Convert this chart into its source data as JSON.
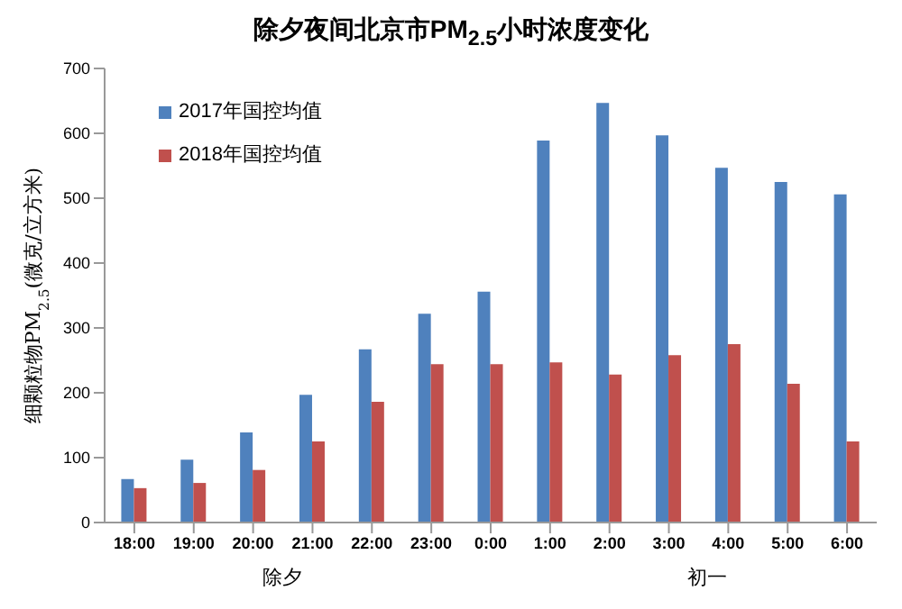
{
  "chart_data": {
    "type": "bar",
    "title": "除夕夜间北京市PM$_{2.5}$小时浓度变化",
    "ylabel": "细颗粒物PM$_{2.5}$(微克/立方米)",
    "categories": [
      "18:00",
      "19:00",
      "20:00",
      "21:00",
      "22:00",
      "23:00",
      "0:00",
      "1:00",
      "2:00",
      "3:00",
      "4:00",
      "5:00",
      "6:00"
    ],
    "series": [
      {
        "name": "2017年国控均值",
        "color": "#4f81bd",
        "values": [
          67,
          97,
          139,
          197,
          267,
          322,
          356,
          589,
          647,
          597,
          547,
          525,
          506
        ]
      },
      {
        "name": "2018年国控均值",
        "color": "#c0504d",
        "values": [
          53,
          61,
          81,
          125,
          186,
          244,
          244,
          247,
          228,
          258,
          275,
          214,
          125
        ]
      }
    ],
    "ylim": [
      0,
      700
    ],
    "yticks": [
      0,
      100,
      200,
      300,
      400,
      500,
      600,
      700
    ],
    "grid": false,
    "legend": "top left",
    "annotations": [
      "除夕",
      "初一"
    ]
  }
}
